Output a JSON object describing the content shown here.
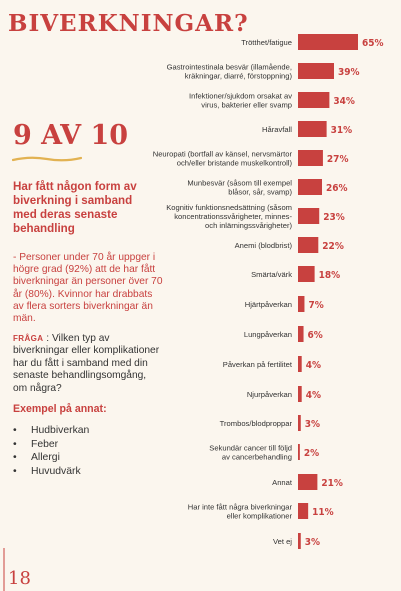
{
  "page": {
    "title": "BIVERKNINGAR?",
    "big_stat": "9 AV 10",
    "headline": "Har fått någon form av biverkning i samband med deras senaste behandling",
    "description": "- Personer under 70 år uppger i högre grad (92%) att de har fått biverkningar än personer över 70 år (80%). Kvinnor har drabbats av flera sorters biverkningar än män.",
    "question_tag": "FRÅGA",
    "question": " : Vilken typ av biverkningar eller komplikationer har du fått i samband med din senaste behandlingsomgång, om några?",
    "examples_title": "Exempel på annat:",
    "examples": [
      "Hudbiverkan",
      "Feber",
      "Allergi",
      "Huvudvärk"
    ],
    "page_number": "18",
    "accent_color": "#c8413f"
  },
  "chart_data": {
    "type": "bar",
    "orientation": "horizontal",
    "categories": [
      [
        "Trötthet/fatigue"
      ],
      [
        "Gastrointestinala besvär (illamående,",
        "kräkningar, diarré, förstoppning)"
      ],
      [
        "Infektioner/sjukdom orsakat av",
        "virus, bakterier eller svamp"
      ],
      [
        "Håravfall"
      ],
      [
        "Neuropati (bortfall av känsel, nervsmärtor",
        "och/eller bristande muskelkontroll)"
      ],
      [
        "Munbesvär (såsom till exempel",
        "blåsor, sår, svamp)"
      ],
      [
        "Kognitiv funktionsnedsättning (såsom",
        "koncentrationssvårigheter, minnes-",
        "och inlärningssvårigheter)"
      ],
      [
        "Anemi (blodbrist)"
      ],
      [
        "Smärta/värk"
      ],
      [
        "Hjärtpåverkan"
      ],
      [
        "Lungpåverkan"
      ],
      [
        "Påverkan på fertilitet"
      ],
      [
        "Njurpåverkan"
      ],
      [
        "Trombos/blodproppar"
      ],
      [
        "Sekundär cancer till följd",
        "av cancerbehandling"
      ],
      [
        "Annat"
      ],
      [
        "Har inte fått några biverkningar",
        "eller komplikationer"
      ],
      [
        "Vet ej"
      ]
    ],
    "values": [
      65,
      39,
      34,
      31,
      27,
      26,
      23,
      22,
      18,
      7,
      6,
      4,
      4,
      3,
      2,
      21,
      11,
      3
    ],
    "value_labels": [
      "65%",
      "39%",
      "34%",
      "31%",
      "27%",
      "26%",
      "23%",
      "22%",
      "18%",
      "7%",
      "6%",
      "4%",
      "4%",
      "3%",
      "2%",
      "21%",
      "11%",
      "3%"
    ],
    "unit": "%",
    "bar_color": "#c8413f",
    "xlim": [
      0,
      65
    ]
  }
}
